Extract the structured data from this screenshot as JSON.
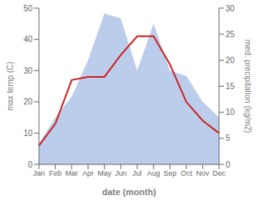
{
  "chart_data": {
    "type": "line",
    "xlabel": "date (month)",
    "ylabel": "max temp (C)",
    "y2label": "med. precipitation (kg/m2)",
    "categories": [
      "Jan",
      "Feb",
      "Mar",
      "Apr",
      "May",
      "Jun",
      "Jul",
      "Aug",
      "Sep",
      "Oct",
      "Nov",
      "Dec"
    ],
    "series": [
      {
        "type": "area",
        "axis": "y2",
        "color": "#b0c4e8",
        "values": [
          4,
          9,
          13,
          20,
          29,
          28,
          18,
          27,
          18,
          17,
          12,
          9
        ]
      },
      {
        "type": "line",
        "color": "#cc2222",
        "values": [
          6,
          13,
          27,
          28,
          28,
          35,
          41,
          41,
          32,
          20,
          14,
          10
        ]
      }
    ],
    "ylim": [
      0,
      50
    ],
    "yticks": [
      0,
      10,
      20,
      30,
      40,
      50
    ],
    "y2lim": [
      0,
      30
    ],
    "y2ticks": [
      0,
      5,
      10,
      15,
      20,
      25,
      30
    ],
    "grid": false
  }
}
